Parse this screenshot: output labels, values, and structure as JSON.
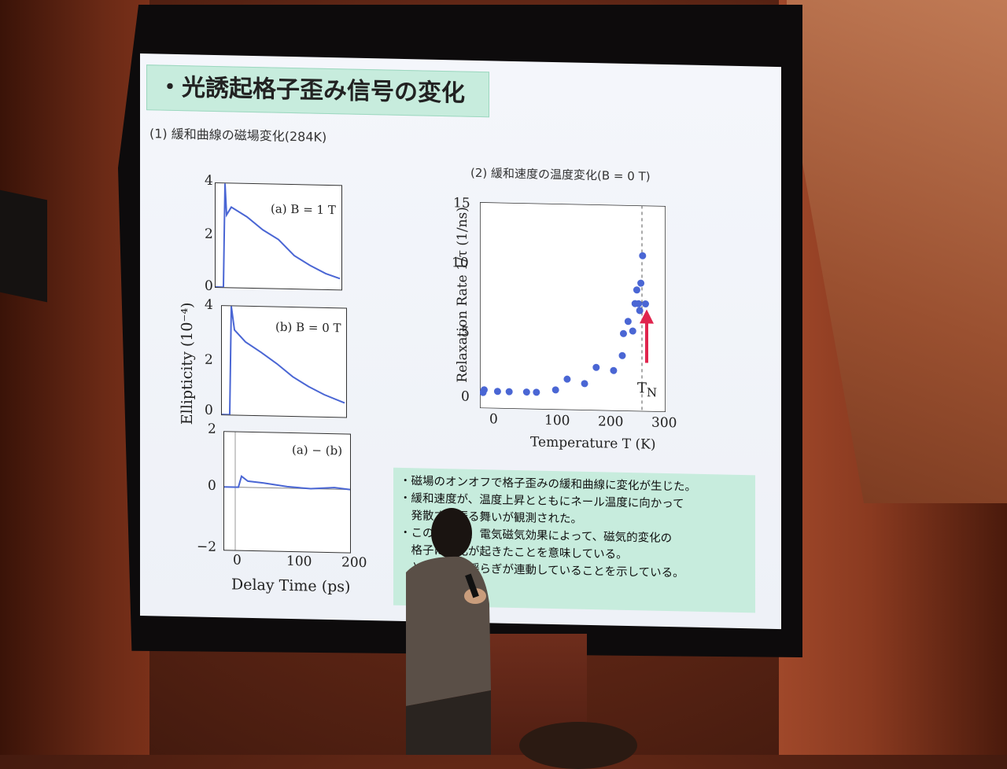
{
  "slide": {
    "title": "・光誘起格子歪み信号の変化",
    "subtitle_left": "(1) 緩和曲線の磁場変化(284K)",
    "subtitle_right": "(2) 緩和速度の温度変化(B = 0 T)",
    "left_panels": {
      "ylabel": "Ellipticity (10⁻⁴)",
      "xlabel": "Delay Time (ps)",
      "xticks": [
        "0",
        "100",
        "200"
      ],
      "panel_a": {
        "label": "(a) B = 1 T",
        "yticks": [
          "4",
          "2",
          "0"
        ]
      },
      "panel_b": {
        "label": "(b) B = 0 T",
        "yticks": [
          "4",
          "2",
          "0"
        ]
      },
      "panel_c": {
        "label": "(a) − (b)",
        "yticks": [
          "2",
          "0",
          "−2"
        ]
      }
    },
    "right_chart": {
      "ylabel": "Relaxation Rate 1/τ (1/ns)",
      "xlabel": "Temperature T (K)",
      "xticks": [
        "0",
        "100",
        "200",
        "300"
      ],
      "yticks": [
        "15",
        "10",
        "5",
        "0"
      ],
      "marker_label": "T",
      "marker_sub": "N"
    },
    "bullets": [
      "・磁場のオンオフで格子歪みの緩和曲線に変化が生じた。",
      "・緩和速度が、温度上昇とともにネール温度に向かって",
      "　発散する振る舞いが観測された。",
      "・この結果は、電気磁気効果によって、磁気的変化の",
      "　格子に変化が起きたことを意味している。",
      "　とスピンの揺らぎが連動していることを示している。"
    ]
  },
  "chart_data": [
    {
      "type": "scatter",
      "xlabel": "Temperature T (K)",
      "ylabel": "Relaxation Rate 1/τ (1/ns)",
      "xlim": [
        0,
        320
      ],
      "ylim": [
        0,
        15
      ],
      "x": [
        0,
        2,
        25,
        45,
        75,
        92,
        125,
        145,
        175,
        195,
        225,
        240,
        242,
        250,
        258,
        262,
        265,
        268,
        270,
        272,
        275,
        280
      ],
      "y": [
        0.8,
        1.0,
        0.9,
        0.9,
        0.9,
        0.9,
        1.1,
        1.9,
        1.6,
        2.8,
        2.6,
        3.7,
        5.3,
        6.2,
        5.5,
        7.5,
        8.5,
        7.5,
        7.0,
        9.0,
        11.0,
        7.5
      ],
      "annotations": [
        "T_N (arrow, dashed line near 280 K)"
      ]
    }
  ]
}
